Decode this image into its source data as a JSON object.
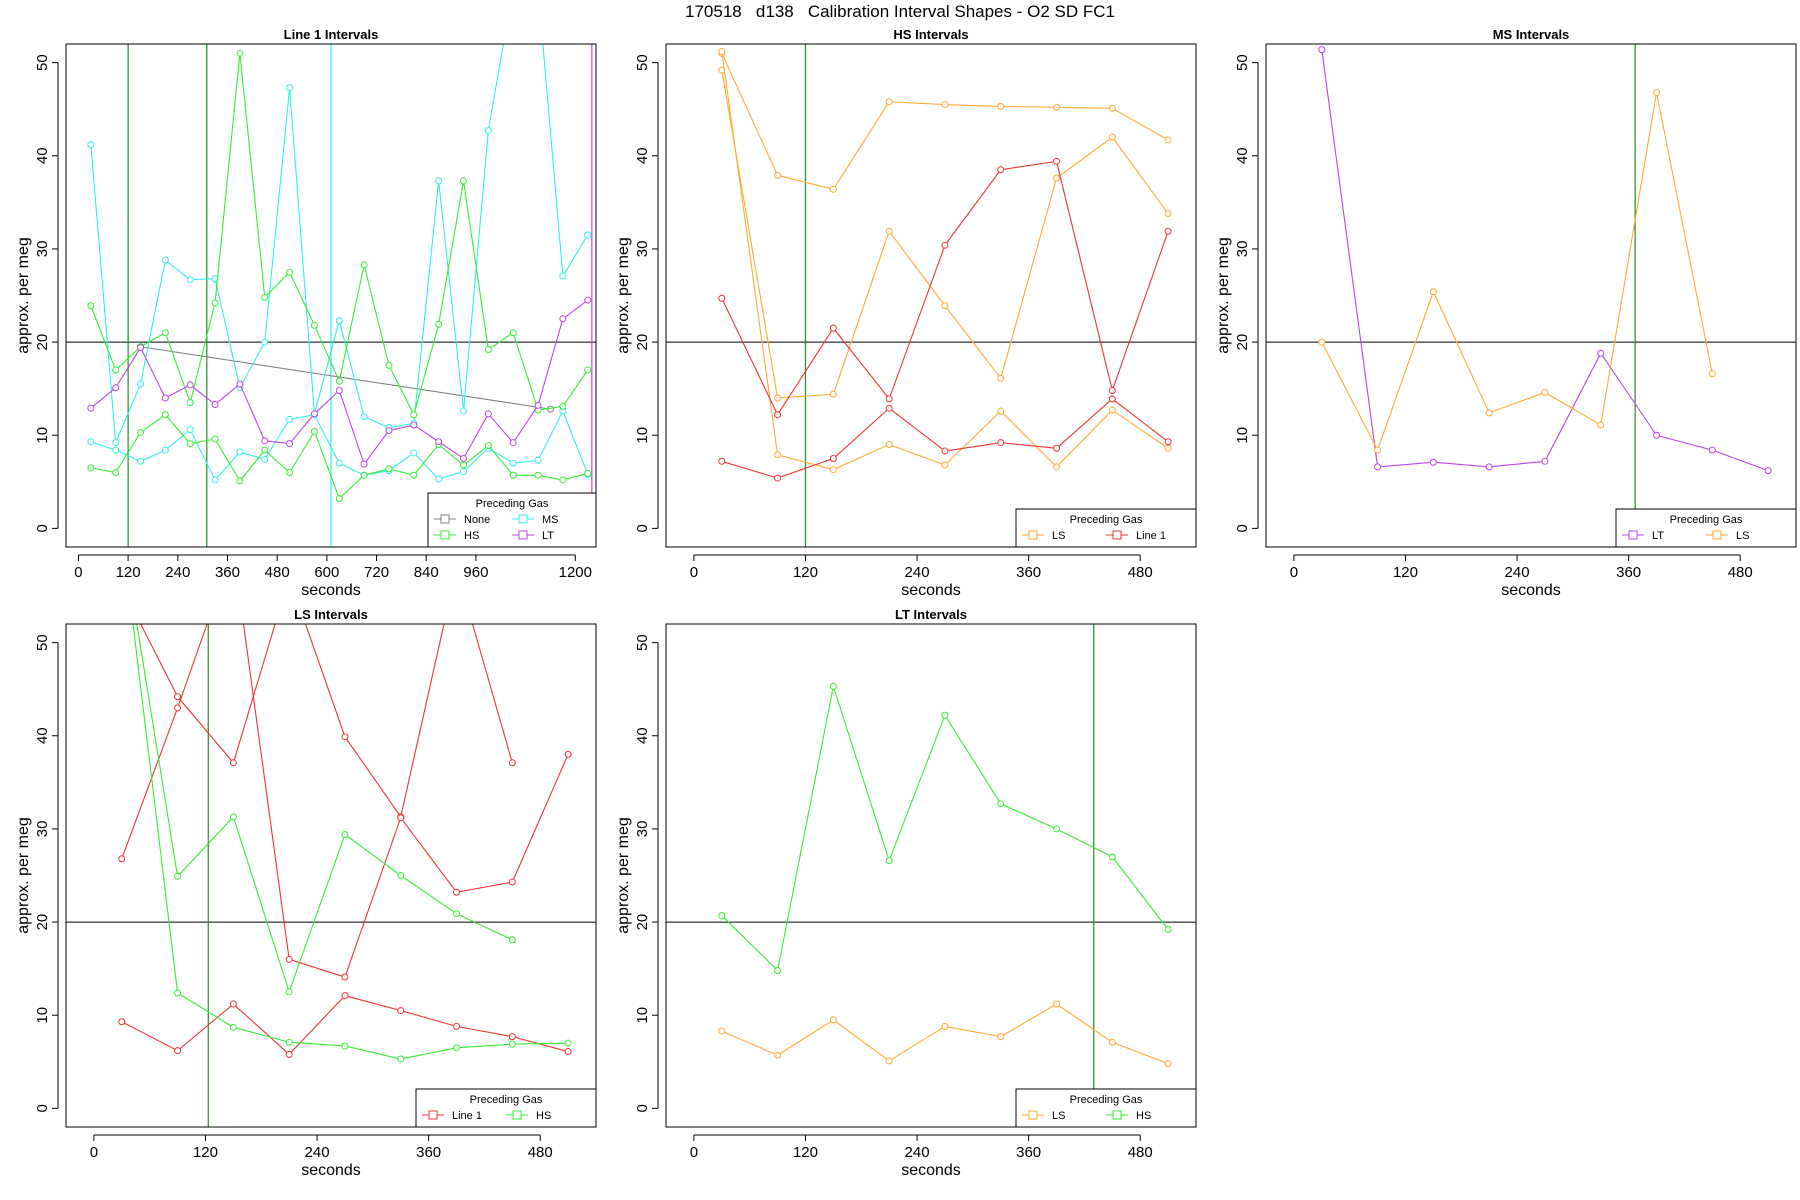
{
  "figure": {
    "title": "170518   d138   Calibration Interval Shapes - O2 SD FC1"
  },
  "colors": {
    "None": "#808080",
    "HS": "#33ee33",
    "MS": "#33eeee",
    "LT": "#bb44ee",
    "LS": "#ffaa33",
    "Line 1": "#ee3333",
    "Reference": "#000000",
    "Marker": "#228b22"
  },
  "chart_data": [
    {
      "type": "line",
      "title": "Line 1 Intervals",
      "xlabel": "seconds",
      "ylabel": "approx. per meg",
      "xlim": [
        -30,
        1250
      ],
      "ylim": [
        -2,
        52
      ],
      "xticks": [
        0,
        120,
        240,
        360,
        480,
        600,
        720,
        840,
        960,
        1200
      ],
      "yticks": [
        0,
        10,
        20,
        30,
        40,
        50
      ],
      "hline": 20,
      "vlines": [
        {
          "x": 120,
          "color": "HS"
        },
        {
          "x": 310,
          "color": "HS"
        },
        {
          "x": 610,
          "color": "MS"
        },
        {
          "x": 1240,
          "color": "LT"
        }
      ],
      "legend": {
        "title": "Preceding Gas",
        "position": "bottom-right",
        "columns": 2,
        "entries": [
          "None",
          "MS",
          "HS",
          "LT"
        ]
      },
      "series": [
        {
          "name": "None",
          "x": [
            150,
            1140
          ],
          "y": [
            19.5,
            12.8
          ]
        },
        {
          "name": "MS",
          "x": [
            30,
            90,
            150,
            210,
            270,
            330,
            390,
            450,
            510,
            570,
            630,
            690,
            750,
            810,
            870,
            930,
            990,
            1050,
            1110,
            1170,
            1230
          ],
          "y": [
            41.2,
            9.2,
            15.5,
            28.8,
            26.7,
            26.8,
            15.1,
            20.0,
            47.3,
            12.3,
            22.3,
            12.0,
            10.8,
            11.3,
            37.3,
            12.6,
            42.7,
            58,
            58,
            27.1,
            31.5
          ]
        },
        {
          "name": "MS",
          "x": [
            30,
            90,
            150,
            210,
            270,
            330,
            390,
            450,
            510,
            570,
            630,
            690,
            750,
            810,
            870,
            930,
            990,
            1050,
            1110,
            1170,
            1230
          ],
          "y": [
            9.3,
            8.4,
            7.2,
            8.4,
            10.6,
            5.2,
            8.2,
            7.4,
            11.7,
            12.2,
            7.0,
            5.7,
            6.2,
            8.1,
            5.3,
            6.1,
            8.6,
            7.0,
            7.3,
            12.6,
            5.8
          ]
        },
        {
          "name": "HS",
          "x": [
            30,
            90,
            150,
            210,
            270,
            330,
            390,
            450,
            510,
            570,
            630,
            690,
            750,
            810,
            870,
            930,
            990,
            1050,
            1110,
            1170,
            1230
          ],
          "y": [
            23.9,
            17.0,
            19.5,
            21.0,
            13.5,
            24.2,
            51.0,
            24.8,
            27.5,
            21.8,
            15.8,
            28.3,
            17.5,
            12.2,
            21.9,
            37.3,
            19.2,
            21.0,
            12.7,
            13.1,
            17.0
          ]
        },
        {
          "name": "HS",
          "x": [
            30,
            90,
            150,
            210,
            270,
            330,
            390,
            450,
            510,
            570,
            630,
            690,
            750,
            810,
            870,
            930,
            990,
            1050,
            1110,
            1170,
            1230
          ],
          "y": [
            6.5,
            6.0,
            10.3,
            12.2,
            9.1,
            9.6,
            5.1,
            8.4,
            6.0,
            10.4,
            3.2,
            5.7,
            6.4,
            5.7,
            9.0,
            6.8,
            8.9,
            5.7,
            5.7,
            5.2,
            5.9
          ]
        },
        {
          "name": "LT",
          "x": [
            30,
            90,
            150,
            210,
            270,
            330,
            390,
            450,
            510,
            570,
            630,
            690,
            750,
            810,
            870,
            930,
            990,
            1050,
            1110,
            1170,
            1230
          ],
          "y": [
            12.9,
            15.1,
            19.4,
            14.0,
            15.4,
            13.3,
            15.5,
            9.4,
            9.1,
            12.3,
            14.8,
            6.9,
            10.5,
            11.1,
            9.3,
            7.5,
            12.3,
            9.2,
            13.2,
            22.5,
            24.5
          ]
        }
      ]
    },
    {
      "type": "line",
      "title": "HS Intervals",
      "xlabel": "seconds",
      "ylabel": "approx. per meg",
      "xlim": [
        -30,
        540
      ],
      "ylim": [
        -2,
        52
      ],
      "xticks": [
        0,
        120,
        240,
        360,
        480
      ],
      "yticks": [
        0,
        10,
        20,
        30,
        40,
        50
      ],
      "hline": 20,
      "vlines": [
        {
          "x": 120,
          "color": "HS"
        }
      ],
      "legend": {
        "title": "Preceding Gas",
        "position": "bottom-right",
        "columns": 2,
        "entries": [
          "LS",
          "Line 1"
        ]
      },
      "series": [
        {
          "name": "LS",
          "x": [
            30,
            90,
            150,
            210,
            270,
            330,
            390,
            450,
            510
          ],
          "y": [
            51.0,
            37.9,
            36.4,
            45.8,
            45.5,
            45.3,
            45.2,
            45.1,
            41.7
          ]
        },
        {
          "name": "LS",
          "x": [
            30,
            90,
            150,
            210,
            270,
            330,
            390,
            450,
            510
          ],
          "y": [
            49.2,
            14.0,
            14.4,
            31.9,
            23.9,
            16.1,
            37.6,
            42.0,
            33.8
          ]
        },
        {
          "name": "LS",
          "x": [
            30,
            90,
            150,
            210,
            270,
            330,
            390,
            450,
            510
          ],
          "y": [
            51.2,
            7.9,
            6.3,
            9.0,
            6.8,
            12.6,
            6.6,
            12.7,
            8.6
          ]
        },
        {
          "name": "Line 1",
          "x": [
            30,
            90,
            150,
            210,
            270,
            330,
            390,
            450,
            510
          ],
          "y": [
            24.7,
            12.2,
            21.5,
            13.9,
            30.4,
            38.5,
            39.4,
            14.8,
            31.9
          ]
        },
        {
          "name": "Line 1",
          "x": [
            30,
            90,
            150,
            210,
            270,
            330,
            390,
            450,
            510
          ],
          "y": [
            7.2,
            5.4,
            7.5,
            12.9,
            8.3,
            9.2,
            8.6,
            13.9,
            9.3
          ]
        }
      ]
    },
    {
      "type": "line",
      "title": "MS Intervals",
      "xlabel": "seconds",
      "ylabel": "approx. per meg",
      "xlim": [
        -30,
        540
      ],
      "ylim": [
        -2,
        52
      ],
      "xticks": [
        0,
        120,
        240,
        360,
        480
      ],
      "yticks": [
        0,
        10,
        20,
        30,
        40,
        50
      ],
      "hline": 20,
      "vlines": [
        {
          "x": 367,
          "color": "HS"
        }
      ],
      "legend": {
        "title": "Preceding Gas",
        "position": "bottom-right",
        "columns": 2,
        "entries": [
          "LT",
          "LS"
        ]
      },
      "series": [
        {
          "name": "LT",
          "x": [
            30,
            90,
            150,
            210,
            270,
            330,
            390,
            450,
            510
          ],
          "y": [
            51.4,
            6.6,
            7.1,
            6.6,
            7.2,
            18.8,
            10.0,
            8.4,
            6.2
          ]
        },
        {
          "name": "LS",
          "x": [
            30,
            90,
            150,
            210,
            270,
            330,
            390,
            450
          ],
          "y": [
            20.0,
            8.4,
            25.4,
            12.4,
            14.6,
            11.1,
            46.8,
            16.6
          ]
        }
      ]
    },
    {
      "type": "line",
      "title": "LS Intervals",
      "xlabel": "seconds",
      "ylabel": "approx. per meg",
      "xlim": [
        -30,
        540
      ],
      "ylim": [
        -2,
        52
      ],
      "xticks": [
        0,
        120,
        240,
        360,
        480
      ],
      "yticks": [
        0,
        10,
        20,
        30,
        40,
        50
      ],
      "hline": 20,
      "vlines": [
        {
          "x": 123,
          "color": "HS"
        }
      ],
      "legend": {
        "title": "Preceding Gas",
        "position": "bottom-right",
        "columns": 2,
        "entries": [
          "Line 1",
          "HS"
        ]
      },
      "series": [
        {
          "name": "Line 1",
          "x": [
            30,
            90,
            150,
            210,
            270,
            330,
            390,
            450
          ],
          "y": [
            56,
            44.2,
            37.1,
            57,
            39.9,
            31.3,
            58,
            37.1
          ]
        },
        {
          "name": "Line 1",
          "x": [
            30,
            90,
            150,
            210,
            270,
            330,
            390,
            450,
            510
          ],
          "y": [
            26.8,
            43.0,
            60,
            16.0,
            14.1,
            31.2,
            23.2,
            24.3,
            38.0
          ]
        },
        {
          "name": "Line 1",
          "x": [
            30,
            90,
            150,
            210,
            270,
            330,
            390,
            450,
            510
          ],
          "y": [
            9.3,
            6.2,
            11.2,
            5.8,
            12.1,
            10.5,
            8.8,
            7.7,
            6.1
          ]
        },
        {
          "name": "HS",
          "x": [
            30,
            90,
            150,
            210,
            270,
            330,
            390,
            450
          ],
          "y": [
            62,
            24.9,
            31.3,
            12.5,
            29.4,
            25.0,
            20.9,
            18.1
          ]
        },
        {
          "name": "HS",
          "x": [
            30,
            90,
            150,
            210,
            270,
            330,
            390,
            450,
            510
          ],
          "y": [
            62,
            12.4,
            8.7,
            7.1,
            6.7,
            5.3,
            6.5,
            6.9,
            7.0
          ]
        }
      ]
    },
    {
      "type": "line",
      "title": "LT Intervals",
      "xlabel": "seconds",
      "ylabel": "approx. per meg",
      "xlim": [
        -30,
        540
      ],
      "ylim": [
        -2,
        52
      ],
      "xticks": [
        0,
        120,
        240,
        360,
        480
      ],
      "yticks": [
        0,
        10,
        20,
        30,
        40,
        50
      ],
      "hline": 20,
      "vlines": [
        {
          "x": 430,
          "color": "HS"
        }
      ],
      "legend": {
        "title": "Preceding Gas",
        "position": "bottom-right",
        "columns": 2,
        "entries": [
          "LS",
          "HS"
        ]
      },
      "series": [
        {
          "name": "HS",
          "x": [
            30,
            90,
            150,
            210,
            270,
            330,
            390,
            450,
            510
          ],
          "y": [
            20.7,
            14.8,
            45.3,
            26.6,
            42.2,
            32.7,
            30.0,
            27.0,
            19.2
          ]
        },
        {
          "name": "LS",
          "x": [
            30,
            90,
            150,
            210,
            270,
            330,
            390,
            450,
            510
          ],
          "y": [
            8.3,
            5.7,
            9.5,
            5.1,
            8.8,
            7.7,
            11.2,
            7.1,
            4.8
          ]
        }
      ]
    }
  ]
}
